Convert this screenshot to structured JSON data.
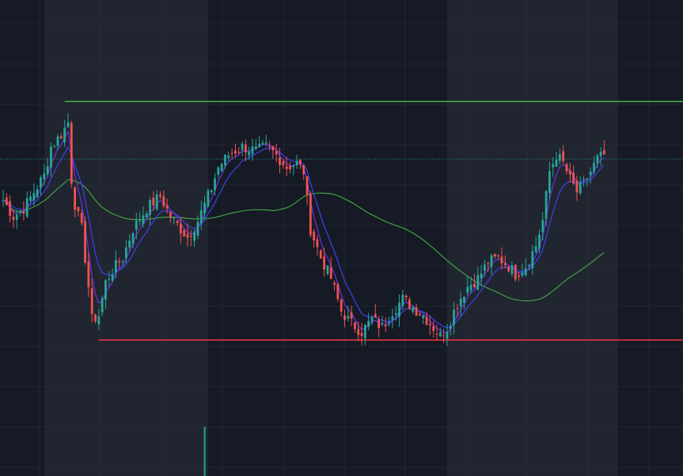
{
  "colors": {
    "background": "#161a25",
    "session_band": "#212530",
    "grid": "#2a2e39",
    "up": "#26a69a",
    "down": "#ef5350",
    "resistance": "#4caf50",
    "support": "#f23645",
    "ema_fast": "#6a2fd6",
    "ema_mid": "#3a3fe0",
    "ma_slow": "#43a047",
    "price_line": "#26a69a",
    "volume": "#26a69a"
  },
  "chart_data": {
    "type": "candlestick",
    "title": "",
    "xlabel": "",
    "ylabel": "",
    "ylim": [
      0,
      100
    ],
    "xlim": [
      0,
      180
    ],
    "grid": true,
    "legend": "none",
    "highlighted_sessions": [
      [
        12,
        60
      ],
      [
        130,
        180
      ]
    ],
    "levels": {
      "resistance": {
        "value": 83,
        "start_index": 18
      },
      "support": {
        "value": 25,
        "start_index": 28
      },
      "current_price": 69
    },
    "volume_spike": {
      "index": 59,
      "value": 100
    },
    "close_anchors": [
      [
        0,
        59
      ],
      [
        3,
        55
      ],
      [
        6,
        57
      ],
      [
        9,
        61
      ],
      [
        12,
        65
      ],
      [
        14,
        72
      ],
      [
        17,
        75
      ],
      [
        19,
        78
      ],
      [
        20,
        64
      ],
      [
        21,
        58
      ],
      [
        23,
        52
      ],
      [
        25,
        38
      ],
      [
        26,
        30
      ],
      [
        28,
        31
      ],
      [
        30,
        39
      ],
      [
        32,
        42
      ],
      [
        35,
        45
      ],
      [
        38,
        52
      ],
      [
        42,
        57
      ],
      [
        46,
        60
      ],
      [
        49,
        55
      ],
      [
        52,
        52
      ],
      [
        54,
        50
      ],
      [
        57,
        54
      ],
      [
        59,
        58
      ],
      [
        61,
        62
      ],
      [
        63,
        67
      ],
      [
        66,
        70
      ],
      [
        70,
        72
      ],
      [
        74,
        71
      ],
      [
        77,
        72
      ],
      [
        80,
        70
      ],
      [
        83,
        67
      ],
      [
        86,
        68
      ],
      [
        88,
        66
      ],
      [
        90,
        52
      ],
      [
        93,
        45
      ],
      [
        96,
        40
      ],
      [
        99,
        32
      ],
      [
        102,
        29
      ],
      [
        105,
        27
      ],
      [
        108,
        30
      ],
      [
        111,
        28
      ],
      [
        114,
        32
      ],
      [
        117,
        35
      ],
      [
        120,
        33
      ],
      [
        123,
        31
      ],
      [
        126,
        28
      ],
      [
        128,
        26
      ],
      [
        130,
        28
      ],
      [
        133,
        34
      ],
      [
        136,
        38
      ],
      [
        139,
        40
      ],
      [
        142,
        44
      ],
      [
        145,
        45
      ],
      [
        148,
        43
      ],
      [
        150,
        41
      ],
      [
        153,
        43
      ],
      [
        156,
        48
      ],
      [
        158,
        54
      ],
      [
        160,
        66
      ],
      [
        162,
        70
      ],
      [
        164,
        68
      ],
      [
        166,
        64
      ],
      [
        168,
        61
      ],
      [
        170,
        63
      ],
      [
        172,
        66
      ],
      [
        174,
        69
      ],
      [
        176,
        70
      ]
    ]
  }
}
